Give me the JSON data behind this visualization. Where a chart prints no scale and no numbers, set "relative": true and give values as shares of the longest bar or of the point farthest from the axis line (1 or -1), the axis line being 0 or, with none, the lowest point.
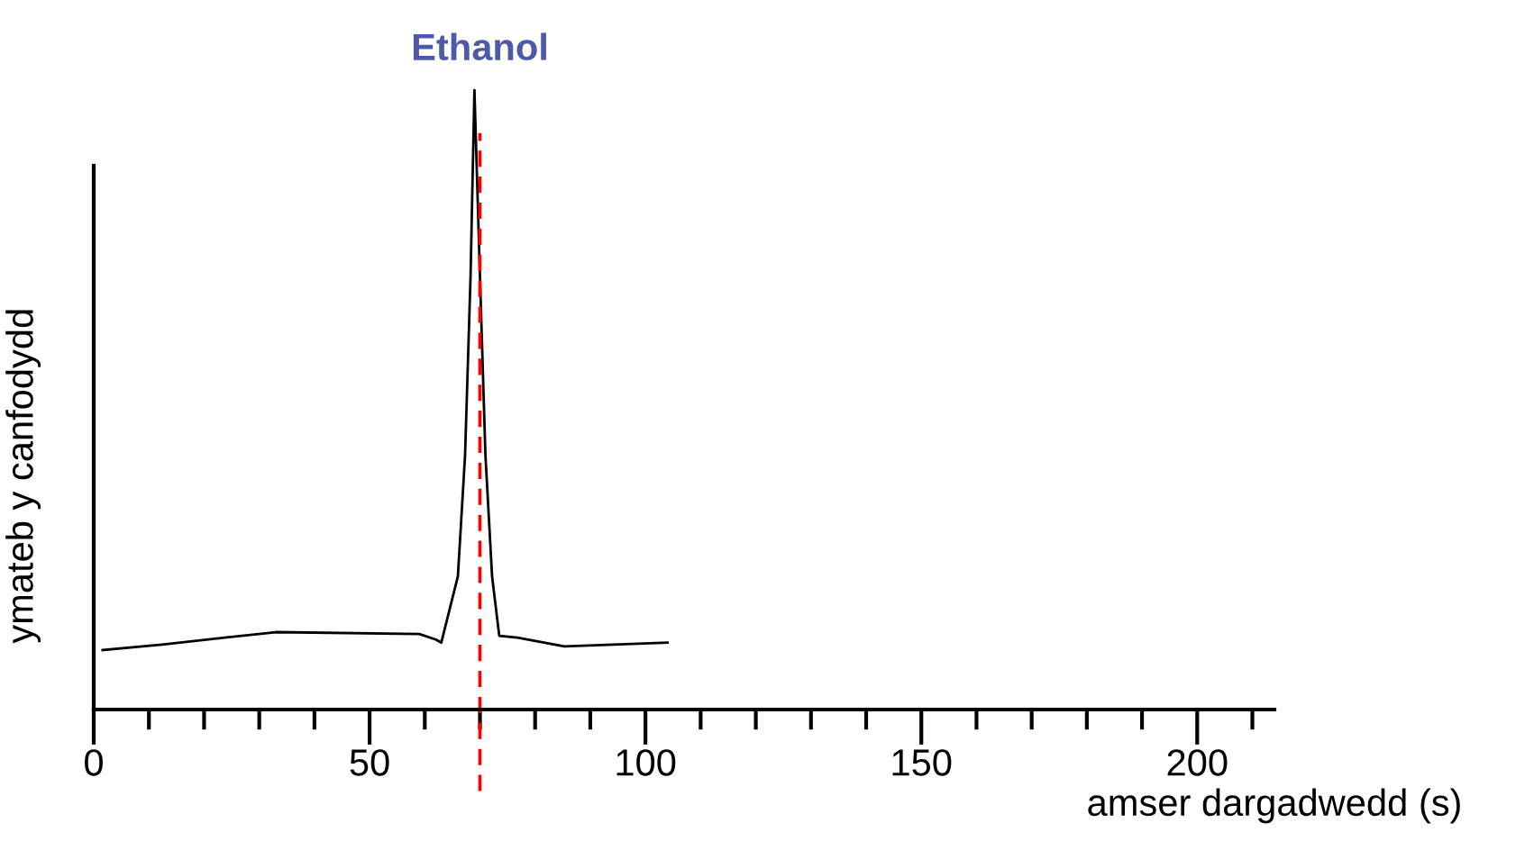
{
  "chart_data": {
    "type": "line",
    "relative": true,
    "xlabel": "amser dargadwedd (s)",
    "ylabel": "ymateb y canfodydd",
    "xlim": [
      0,
      214
    ],
    "xticks": [
      0,
      {
        "value": 10,
        "label": null
      },
      {
        "value": 20,
        "label": null
      },
      {
        "value": 30,
        "label": null
      },
      {
        "value": 40,
        "label": null
      },
      50,
      {
        "value": 60,
        "label": null
      },
      {
        "value": 70,
        "label": null
      },
      {
        "value": 80,
        "label": null
      },
      {
        "value": 90,
        "label": null
      },
      100,
      {
        "value": 110,
        "label": null
      },
      {
        "value": 120,
        "label": null
      },
      {
        "value": 130,
        "label": null
      },
      {
        "value": 140,
        "label": null
      },
      150,
      {
        "value": 160,
        "label": null
      },
      {
        "value": 170,
        "label": null
      },
      {
        "value": 180,
        "label": null
      },
      {
        "value": 190,
        "label": null
      },
      200,
      {
        "value": 210,
        "label": null
      }
    ],
    "tick_labels": "x",
    "series": [
      {
        "color": "#000000",
        "x": [
          1.6,
          12.4,
          33,
          59,
          62,
          63,
          66,
          67.3,
          68.3,
          69,
          70,
          71,
          72.2,
          73.5,
          76.8,
          85.3,
          104
        ],
        "values": [
          0.096,
          0.105,
          0.125,
          0.122,
          0.113,
          0.108,
          0.215,
          0.41,
          0.7,
          1,
          0.7,
          0.41,
          0.215,
          0.119,
          0.116,
          0.102,
          0.108
        ]
      }
    ],
    "ref_lines": [
      {
        "axis": "x",
        "value": 70,
        "label": "Ethanol",
        "color": "#ff0000",
        "line_style": "dashed"
      }
    ],
    "grid": false,
    "legend": false,
    "marker": "none",
    "line_style": "solid"
  }
}
